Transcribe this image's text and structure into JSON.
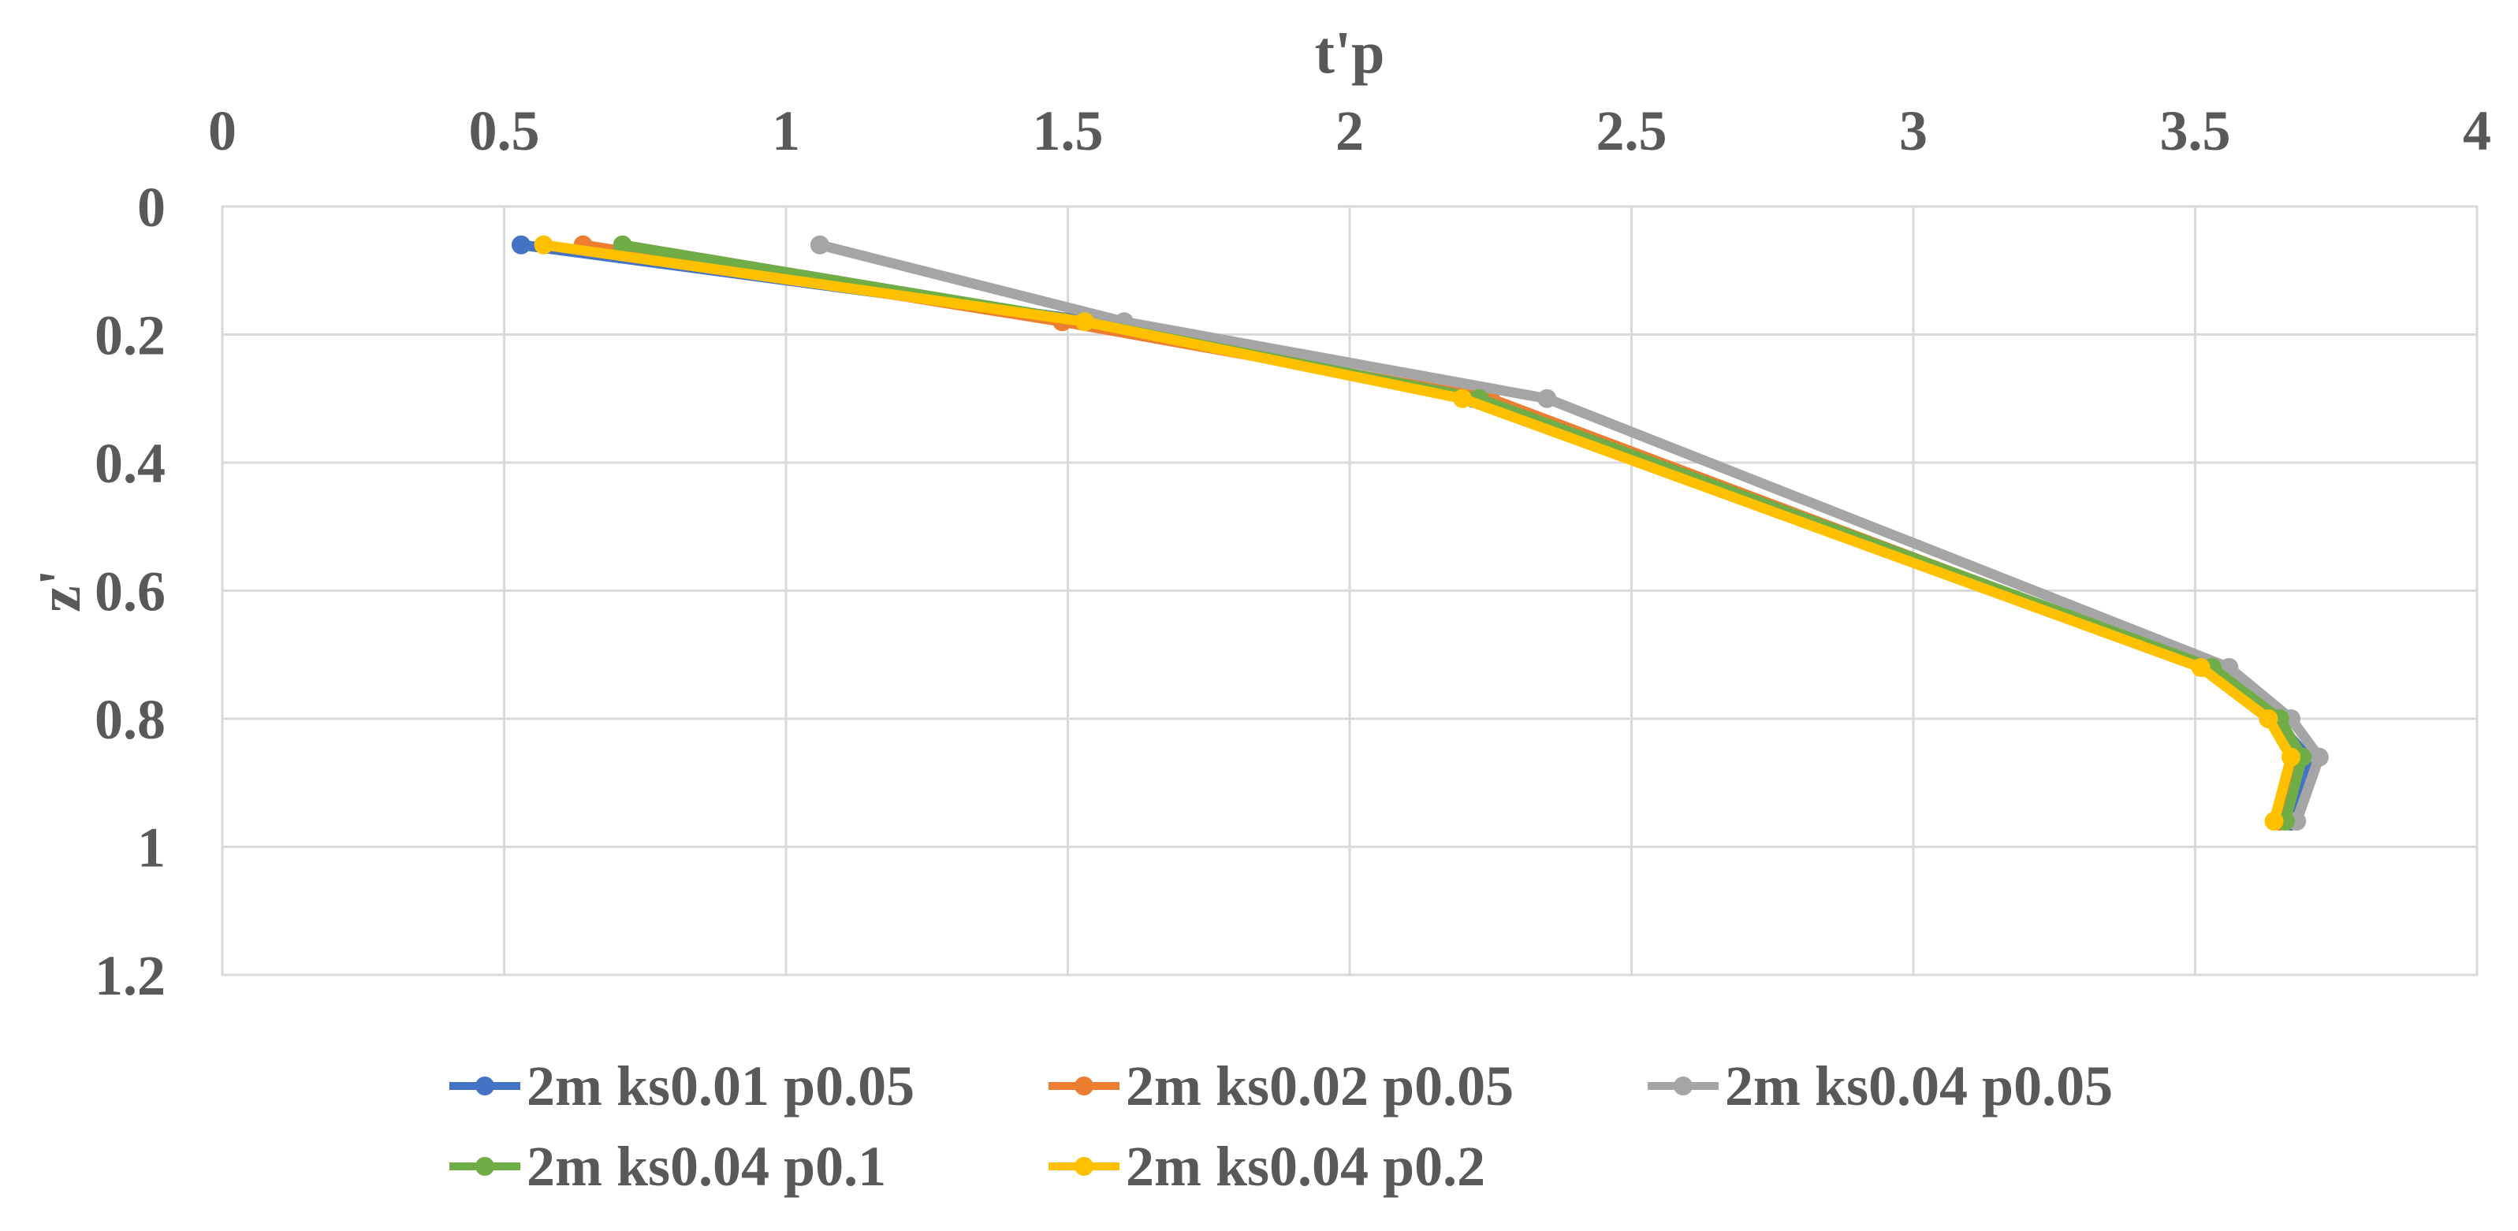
{
  "chart_data": {
    "type": "line",
    "title": "",
    "xlabel": "t'p",
    "ylabel": "z'",
    "x_axis_position": "top",
    "y_axis_inverted": true,
    "xlim": [
      0,
      4
    ],
    "ylim": [
      0,
      1.2
    ],
    "x_ticks": [
      "0",
      "0.5",
      "1",
      "1.5",
      "2",
      "2.5",
      "3",
      "3.5",
      "4"
    ],
    "y_ticks": [
      "0",
      "0.2",
      "0.4",
      "0.6",
      "0.8",
      "1",
      "1.2"
    ],
    "grid": true,
    "legend_position": "bottom",
    "series": [
      {
        "name": "2m ks0.01 p0.05",
        "color": "#4472C4",
        "points": [
          [
            0.53,
            0.06
          ],
          [
            1.55,
            0.18
          ],
          [
            2.22,
            0.3
          ],
          [
            3.52,
            0.72
          ],
          [
            3.64,
            0.8
          ],
          [
            3.7,
            0.86
          ],
          [
            3.67,
            0.96
          ]
        ]
      },
      {
        "name": "2m ks0.02 p0.05",
        "color": "#ED7D31",
        "points": [
          [
            0.64,
            0.06
          ],
          [
            1.49,
            0.18
          ],
          [
            2.25,
            0.3
          ],
          [
            3.52,
            0.72
          ],
          [
            3.63,
            0.8
          ],
          [
            3.68,
            0.86
          ],
          [
            3.65,
            0.96
          ]
        ]
      },
      {
        "name": "2m ks0.04 p0.05",
        "color": "#A5A5A5",
        "points": [
          [
            1.06,
            0.06
          ],
          [
            1.6,
            0.18
          ],
          [
            2.35,
            0.3
          ],
          [
            3.56,
            0.72
          ],
          [
            3.67,
            0.8
          ],
          [
            3.72,
            0.86
          ],
          [
            3.68,
            0.96
          ]
        ]
      },
      {
        "name": "2m ks0.04 p0.1",
        "color": "#70AD47",
        "points": [
          [
            0.71,
            0.06
          ],
          [
            1.53,
            0.18
          ],
          [
            2.23,
            0.3
          ],
          [
            3.53,
            0.72
          ],
          [
            3.65,
            0.8
          ],
          [
            3.69,
            0.86
          ],
          [
            3.66,
            0.96
          ]
        ]
      },
      {
        "name": "2m ks0.04 p0.2",
        "color": "#FFC000",
        "points": [
          [
            0.57,
            0.06
          ],
          [
            1.53,
            0.18
          ],
          [
            2.2,
            0.3
          ],
          [
            3.51,
            0.72
          ],
          [
            3.63,
            0.8
          ],
          [
            3.67,
            0.86
          ],
          [
            3.64,
            0.96
          ]
        ]
      }
    ]
  }
}
